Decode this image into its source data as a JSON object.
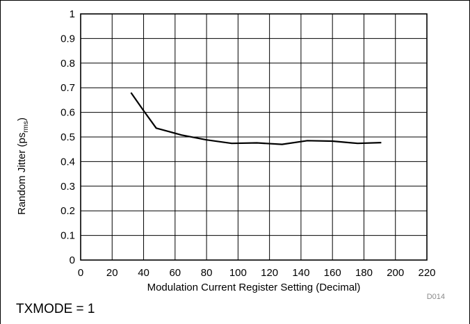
{
  "chart_data": {
    "type": "line",
    "xlabel": "Modulation Current Register Setting (Decimal)",
    "ylabel_main": "Random Jitter (ps",
    "ylabel_sub": "rms",
    "ylabel_end": ")",
    "xlim": [
      0,
      220
    ],
    "ylim": [
      0,
      1
    ],
    "xticks": [
      0,
      20,
      40,
      60,
      80,
      100,
      120,
      140,
      160,
      180,
      200,
      220
    ],
    "yticks": [
      0,
      0.1,
      0.2,
      0.3,
      0.4,
      0.5,
      0.6,
      0.7,
      0.8,
      0.9,
      1
    ],
    "grid": true,
    "series": [
      {
        "x": [
          32,
          40,
          48,
          56,
          64,
          72,
          80,
          96,
          112,
          128,
          144,
          160,
          176,
          191
        ],
        "y": [
          0.68,
          0.607,
          0.536,
          0.522,
          0.508,
          0.498,
          0.488,
          0.474,
          0.476,
          0.47,
          0.485,
          0.483,
          0.474,
          0.477
        ]
      }
    ],
    "color": "#000000"
  },
  "figure_code": "D014",
  "caption": "TXMODE = 1"
}
